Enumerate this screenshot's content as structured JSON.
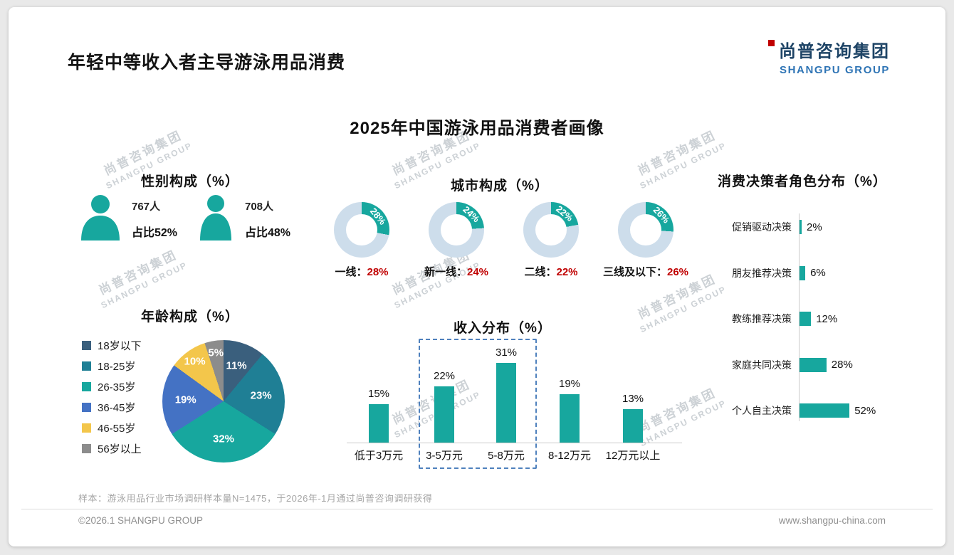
{
  "page": {
    "title": "年轻中等收入者主导游泳用品消费",
    "logo": {
      "cn": "尚普咨询集团",
      "en": "SHANGPU GROUP"
    },
    "chart_title": "2025年中国游泳用品消费者画像",
    "footnote": "样本：游泳用品行业市场调研样本量N=1475，于2026年-1月通过尚普咨询调研获得",
    "footer_left": "©2026.1 SHANGPU GROUP",
    "footer_right": "www.shangpu-china.com",
    "watermark_cn": "尚普咨询集团",
    "watermark_en": "SHANGPU GROUP"
  },
  "colors": {
    "teal": "#17a79e",
    "donut_rest": "#cdddeb",
    "accent_red": "#c00000",
    "logo_navy": "#1e4466",
    "logo_blue": "#2e74b5"
  },
  "chart_data": [
    {
      "type": "icon-stat",
      "title": "性别构成（%）",
      "items": [
        {
          "icon": "male-icon",
          "count": "767人",
          "share": "占比52%"
        },
        {
          "icon": "female-icon",
          "count": "708人",
          "share": "占比48%"
        }
      ]
    },
    {
      "type": "pie",
      "variant": "donut",
      "title": "城市构成（%）",
      "items": [
        {
          "label": "一线",
          "value": 28
        },
        {
          "label": "新一线",
          "value": 24
        },
        {
          "label": "二线",
          "value": 22
        },
        {
          "label": "三线及以下",
          "value": 26
        }
      ]
    },
    {
      "type": "pie",
      "title": "年龄构成（%）",
      "segments": [
        {
          "label": "18岁以下",
          "value": 11,
          "color": "#3a5f7d"
        },
        {
          "label": "18-25岁",
          "value": 23,
          "color": "#1f7f95"
        },
        {
          "label": "26-35岁",
          "value": 32,
          "color": "#17a79e"
        },
        {
          "label": "36-45岁",
          "value": 19,
          "color": "#4472c4"
        },
        {
          "label": "46-55岁",
          "value": 10,
          "color": "#f3c64b"
        },
        {
          "label": "56岁以上",
          "value": 5,
          "color": "#8c8c8c"
        }
      ]
    },
    {
      "type": "bar",
      "title": "收入分布（%）",
      "categories": [
        "低于3万元",
        "3-5万元",
        "5-8万元",
        "8-12万元",
        "12万元以上"
      ],
      "values": [
        15,
        22,
        31,
        19,
        13
      ],
      "ylim": [
        0,
        35
      ],
      "highlight": {
        "from": "3-5万元",
        "to": "5-8万元"
      }
    },
    {
      "type": "bar",
      "variant": "horizontal",
      "title": "消费决策者角色分布（%）",
      "categories": [
        "促销驱动决策",
        "朋友推荐决策",
        "教练推荐决策",
        "家庭共同决策",
        "个人自主决策"
      ],
      "values": [
        2,
        6,
        12,
        28,
        52
      ],
      "xlim": [
        0,
        60
      ]
    }
  ]
}
